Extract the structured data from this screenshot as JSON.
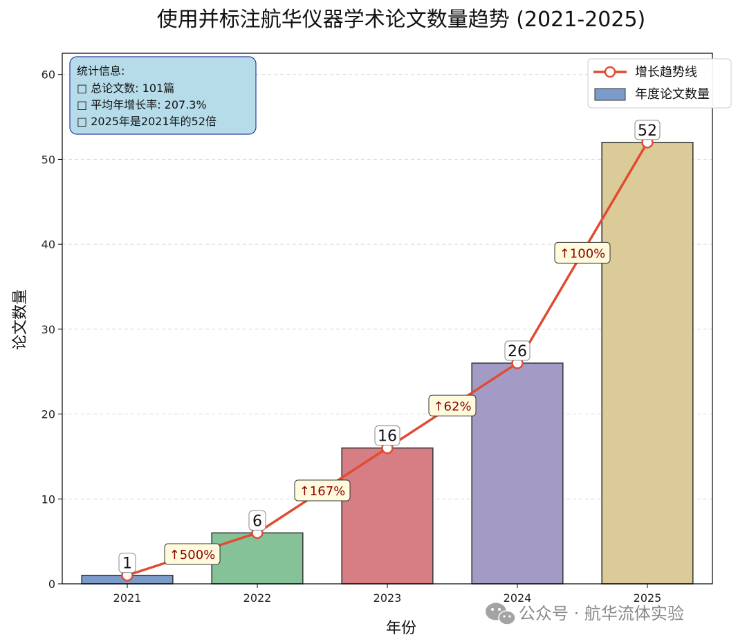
{
  "chart_data": {
    "type": "bar",
    "title": "使用并标注航华仪器学术论文数量趋势 (2021-2025)",
    "xlabel": "年份",
    "ylabel": "论文数量",
    "categories": [
      "2021",
      "2022",
      "2023",
      "2024",
      "2025"
    ],
    "series": [
      {
        "name": "年度论文数量",
        "kind": "bar",
        "values": [
          1,
          6,
          16,
          26,
          52
        ],
        "colors": [
          "#7b9bcb",
          "#86c298",
          "#d67e83",
          "#a39bc6",
          "#dbcb98"
        ]
      },
      {
        "name": "增长趋势线",
        "kind": "line",
        "values": [
          1,
          6,
          16,
          26,
          52
        ],
        "color": "#e04b32"
      }
    ],
    "value_labels": [
      "1",
      "6",
      "16",
      "26",
      "52"
    ],
    "growth_labels": [
      "↑500%",
      "↑167%",
      "↑62%",
      "↑100%"
    ],
    "ylim": [
      0,
      62.5
    ],
    "yticks": [
      0,
      10,
      20,
      30,
      40,
      50,
      60
    ],
    "grid": true,
    "legend_position": "top-right"
  },
  "stats_box": {
    "title": "统计信息:",
    "lines": [
      "□ 总论文数: 101篇",
      "□ 平均年增长率: 207.3%",
      "□ 2025年是2021年的52倍"
    ]
  },
  "watermark": {
    "text": "公众号 · 航华流体实验",
    "icon": "wechat-icon"
  }
}
